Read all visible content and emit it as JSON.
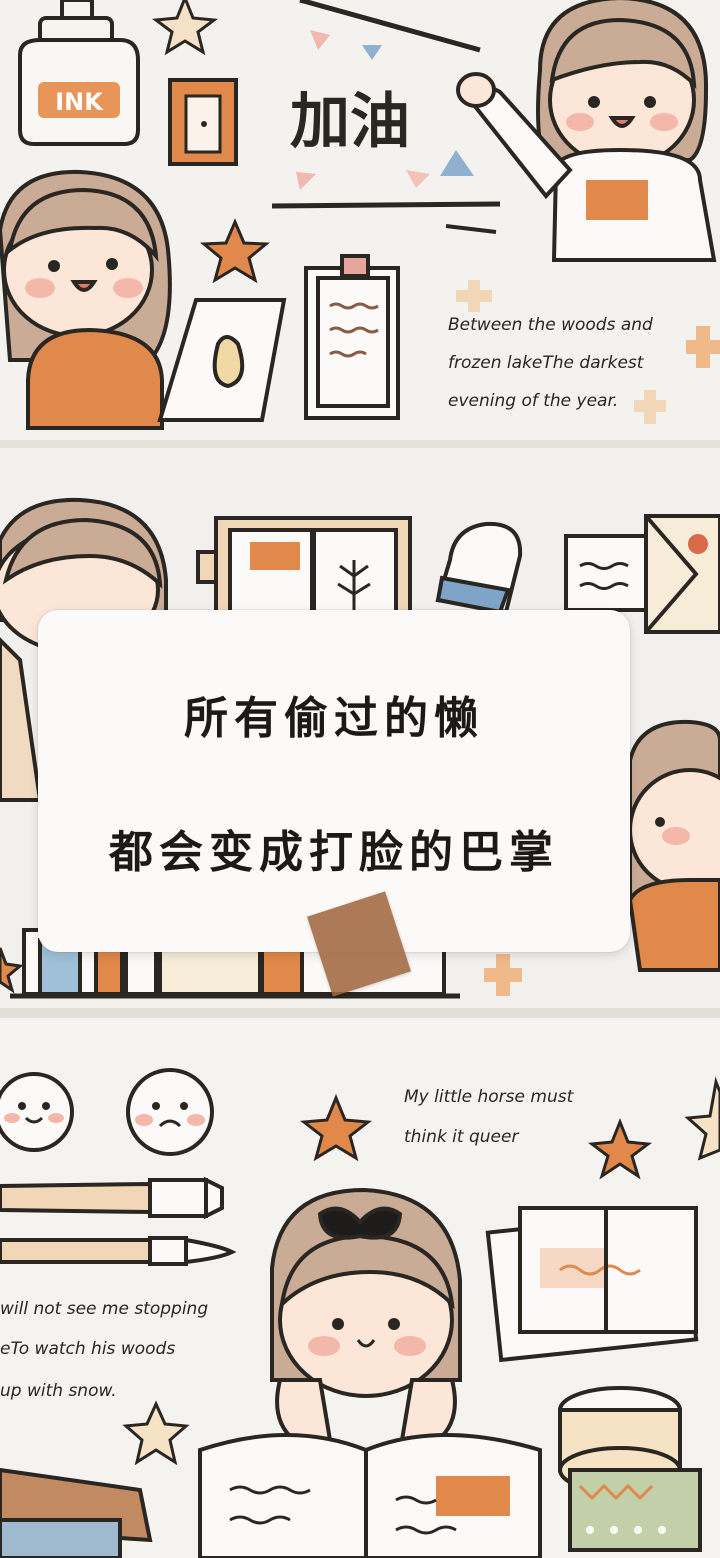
{
  "sticker_top": {
    "ink_label": "INK",
    "cheer_text": "加油",
    "poem_lines": [
      "Between the woods and",
      "frozen lakeThe darkest",
      "evening of the year."
    ]
  },
  "card": {
    "line1": "所有偷过的懒",
    "line2": "都会变成打脸的巴掌"
  },
  "sticker_bottom": {
    "poem_right": [
      "My little horse must",
      "think it queer"
    ],
    "poem_left": [
      "will not see me stopping",
      "eTo watch his woods",
      "up with snow."
    ]
  },
  "colors": {
    "background": "#eeebe6",
    "card": "#fbfaf8",
    "orange": "#e0894a",
    "skin": "#fbe6d8",
    "hair": "#c9ab96",
    "tape": "#a06840"
  }
}
